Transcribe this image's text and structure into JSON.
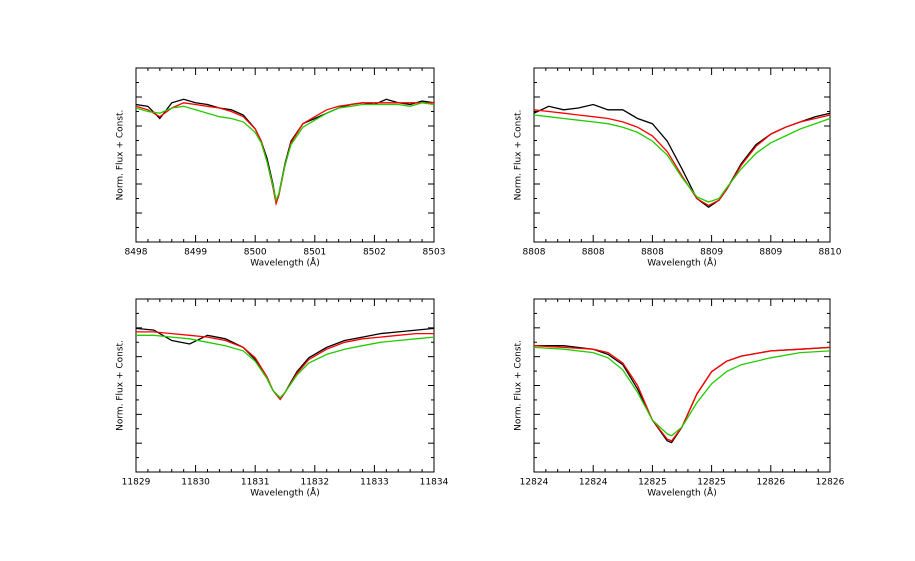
{
  "chart_data": [
    {
      "type": "line",
      "xlabel": "Wavelength (Å)",
      "ylabel": "Norm. Flux + Const.",
      "xlim": [
        8498,
        8503
      ],
      "xticks": [
        8498,
        8499,
        8500,
        8501,
        8502,
        8503
      ],
      "ylim": [
        0,
        1
      ],
      "x": [
        8498,
        8498.2,
        8498.4,
        8498.6,
        8498.8,
        8499,
        8499.2,
        8499.4,
        8499.6,
        8499.8,
        8500,
        8500.1,
        8500.2,
        8500.3,
        8500.35,
        8500.4,
        8500.5,
        8500.6,
        8500.8,
        8501,
        8501.2,
        8501.4,
        8501.6,
        8501.8,
        8502,
        8502.2,
        8502.4,
        8502.6,
        8502.8,
        8503
      ],
      "series": [
        {
          "color": "#000000",
          "values": [
            0.79,
            0.78,
            0.71,
            0.8,
            0.82,
            0.8,
            0.79,
            0.77,
            0.76,
            0.73,
            0.65,
            0.58,
            0.48,
            0.33,
            0.23,
            0.28,
            0.45,
            0.58,
            0.68,
            0.71,
            0.74,
            0.77,
            0.79,
            0.8,
            0.79,
            0.82,
            0.8,
            0.79,
            0.81,
            0.8
          ]
        },
        {
          "color": "#ff0000",
          "values": [
            0.78,
            0.76,
            0.72,
            0.77,
            0.8,
            0.79,
            0.78,
            0.77,
            0.75,
            0.72,
            0.65,
            0.58,
            0.46,
            0.31,
            0.22,
            0.27,
            0.44,
            0.57,
            0.68,
            0.72,
            0.76,
            0.78,
            0.79,
            0.8,
            0.8,
            0.8,
            0.8,
            0.8,
            0.8,
            0.8
          ]
        },
        {
          "color": "#22cc00",
          "values": [
            0.77,
            0.75,
            0.74,
            0.77,
            0.78,
            0.76,
            0.74,
            0.72,
            0.71,
            0.69,
            0.63,
            0.57,
            0.46,
            0.32,
            0.24,
            0.28,
            0.44,
            0.56,
            0.66,
            0.7,
            0.74,
            0.77,
            0.78,
            0.79,
            0.79,
            0.79,
            0.79,
            0.78,
            0.8,
            0.79
          ]
        }
      ]
    },
    {
      "type": "line",
      "xlabel": "Wavelength (Å)",
      "ylabel": "Norm. Flux + Const.",
      "xlim": [
        8807.6,
        8809.6
      ],
      "xticks": [
        {
          "value": 8807.6,
          "label": "8808"
        },
        {
          "value": 8808.0,
          "label": "8808"
        },
        {
          "value": 8808.4,
          "label": "8808"
        },
        {
          "value": 8808.8,
          "label": "8809"
        },
        {
          "value": 8809.2,
          "label": "8809"
        },
        {
          "value": 8809.6,
          "label": "8810"
        }
      ],
      "ylim": [
        0,
        1
      ],
      "x": [
        8807.6,
        8807.7,
        8807.8,
        8807.9,
        8808.0,
        8808.1,
        8808.2,
        8808.3,
        8808.4,
        8808.5,
        8808.6,
        8808.7,
        8808.78,
        8808.85,
        8808.9,
        8809.0,
        8809.1,
        8809.2,
        8809.3,
        8809.4,
        8809.5,
        8809.6
      ],
      "series": [
        {
          "color": "#000000",
          "values": [
            0.74,
            0.78,
            0.76,
            0.77,
            0.79,
            0.76,
            0.76,
            0.71,
            0.68,
            0.58,
            0.42,
            0.25,
            0.2,
            0.24,
            0.3,
            0.45,
            0.56,
            0.62,
            0.66,
            0.69,
            0.72,
            0.74
          ]
        },
        {
          "color": "#ff0000",
          "values": [
            0.76,
            0.75,
            0.74,
            0.73,
            0.72,
            0.71,
            0.69,
            0.66,
            0.61,
            0.52,
            0.38,
            0.25,
            0.21,
            0.24,
            0.3,
            0.44,
            0.55,
            0.62,
            0.66,
            0.69,
            0.71,
            0.73
          ]
        },
        {
          "color": "#22cc00",
          "values": [
            0.73,
            0.72,
            0.71,
            0.7,
            0.69,
            0.68,
            0.66,
            0.63,
            0.58,
            0.5,
            0.37,
            0.26,
            0.23,
            0.25,
            0.31,
            0.42,
            0.51,
            0.57,
            0.61,
            0.65,
            0.68,
            0.71
          ]
        }
      ]
    },
    {
      "type": "line",
      "xlabel": "Wavelength (Å)",
      "ylabel": "Norm. Flux + Const.",
      "xlim": [
        11829,
        11834
      ],
      "xticks": [
        11829,
        11830,
        11831,
        11832,
        11833,
        11834
      ],
      "ylim": [
        0,
        1
      ],
      "x": [
        11829,
        11829.3,
        11829.6,
        11829.9,
        11830.2,
        11830.5,
        11830.8,
        11831,
        11831.2,
        11831.3,
        11831.42,
        11831.5,
        11831.7,
        11831.9,
        11832.2,
        11832.5,
        11832.8,
        11833.1,
        11833.4,
        11833.7,
        11834
      ],
      "series": [
        {
          "color": "#000000",
          "values": [
            0.83,
            0.82,
            0.76,
            0.74,
            0.79,
            0.77,
            0.72,
            0.65,
            0.54,
            0.47,
            0.42,
            0.46,
            0.58,
            0.66,
            0.72,
            0.76,
            0.78,
            0.8,
            0.81,
            0.82,
            0.83
          ]
        },
        {
          "color": "#ff0000",
          "values": [
            0.81,
            0.81,
            0.8,
            0.79,
            0.78,
            0.76,
            0.72,
            0.66,
            0.55,
            0.47,
            0.42,
            0.46,
            0.57,
            0.65,
            0.71,
            0.75,
            0.77,
            0.78,
            0.79,
            0.8,
            0.8
          ]
        },
        {
          "color": "#22cc00",
          "values": [
            0.79,
            0.79,
            0.78,
            0.77,
            0.75,
            0.73,
            0.7,
            0.64,
            0.54,
            0.47,
            0.43,
            0.46,
            0.56,
            0.63,
            0.68,
            0.71,
            0.73,
            0.75,
            0.76,
            0.77,
            0.78
          ]
        }
      ]
    },
    {
      "type": "line",
      "xlabel": "Wavelength (Å)",
      "ylabel": "Norm. Flux + Const.",
      "xlim": [
        12824,
        12826
      ],
      "xticks": [
        12824,
        {
          "value": 12824.4,
          "label": "12824"
        },
        {
          "value": 12824.8,
          "label": "12825"
        },
        {
          "value": 12825.2,
          "label": "12825"
        },
        {
          "value": 12825.6,
          "label": "12826"
        },
        12826
      ],
      "ylim": [
        0,
        1
      ],
      "x": [
        12824,
        12824.2,
        12824.4,
        12824.5,
        12824.6,
        12824.7,
        12824.8,
        12824.9,
        12824.93,
        12825,
        12825.1,
        12825.2,
        12825.3,
        12825.4,
        12825.6,
        12825.8,
        12826
      ],
      "series": [
        {
          "color": "#000000",
          "values": [
            0.73,
            0.73,
            0.71,
            0.68,
            0.62,
            0.48,
            0.3,
            0.18,
            0.17,
            0.26,
            0.45,
            0.58,
            0.64,
            0.67,
            0.7,
            0.71,
            0.72
          ]
        },
        {
          "color": "#ff0000",
          "values": [
            0.73,
            0.72,
            0.71,
            0.69,
            0.63,
            0.5,
            0.3,
            0.19,
            0.18,
            0.26,
            0.45,
            0.58,
            0.64,
            0.67,
            0.7,
            0.71,
            0.72
          ]
        },
        {
          "color": "#22cc00",
          "values": [
            0.72,
            0.71,
            0.69,
            0.66,
            0.59,
            0.46,
            0.3,
            0.22,
            0.21,
            0.26,
            0.4,
            0.51,
            0.58,
            0.62,
            0.66,
            0.69,
            0.7
          ]
        }
      ]
    }
  ]
}
